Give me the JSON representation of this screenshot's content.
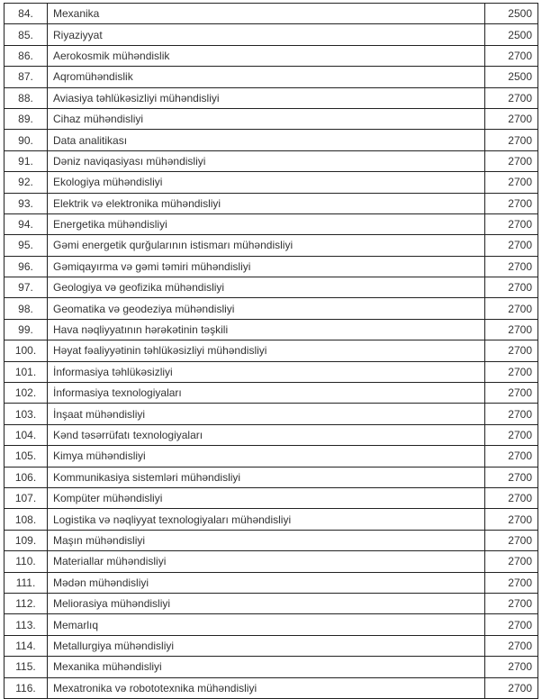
{
  "rows": [
    [
      "84.",
      "Mexanika",
      "2500"
    ],
    [
      "85.",
      "Riyaziyyat",
      "2500"
    ],
    [
      "86.",
      "Aerokosmik mühəndislik",
      "2700"
    ],
    [
      "87.",
      "Aqromühəndislik",
      "2500"
    ],
    [
      "88.",
      "Aviasiya təhlükəsizliyi mühəndisliyi",
      "2700"
    ],
    [
      "89.",
      "Cihaz mühəndisliyi",
      "2700"
    ],
    [
      "90.",
      "Data analitikası",
      "2700"
    ],
    [
      "91.",
      "Dəniz naviqasiyası mühəndisliyi",
      "2700"
    ],
    [
      "92.",
      "Ekologiya mühəndisliyi",
      "2700"
    ],
    [
      "93.",
      "Elektrik və elektronika mühəndisliyi",
      "2700"
    ],
    [
      "94.",
      "Energetika mühəndisliyi",
      "2700"
    ],
    [
      "95.",
      "Gəmi energetik qurğularının istismarı mühəndisliyi",
      "2700"
    ],
    [
      "96.",
      "Gəmiqayırma və gəmi təmiri mühəndisliyi",
      "2700"
    ],
    [
      "97.",
      "Geologiya və geofizika mühəndisliyi",
      "2700"
    ],
    [
      "98.",
      "Geomatika və geodeziya mühəndisliyi",
      "2700"
    ],
    [
      "99.",
      "Hava nəqliyyatının hərəkətinin təşkili",
      "2700"
    ],
    [
      "100.",
      "Həyat fəaliyyətinin təhlükəsizliyi mühəndisliyi",
      "2700"
    ],
    [
      "101.",
      "İnformasiya təhlükəsizliyi",
      "2700"
    ],
    [
      "102.",
      "İnformasiya texnologiyaları",
      "2700"
    ],
    [
      "103.",
      "İnşaat mühəndisliyi",
      "2700"
    ],
    [
      "104.",
      "Kənd təsərrüfatı texnologiyaları",
      "2700"
    ],
    [
      "105.",
      "Kimya mühəndisliyi",
      "2700"
    ],
    [
      "106.",
      "Kommunikasiya sistemləri mühəndisliyi",
      "2700"
    ],
    [
      "107.",
      "Kompüter mühəndisliyi",
      "2700"
    ],
    [
      "108.",
      "Logistika və nəqliyyat texnologiyaları mühəndisliyi",
      "2700"
    ],
    [
      "109.",
      "Maşın mühəndisliyi",
      "2700"
    ],
    [
      "110.",
      "Materiallar mühəndisliyi",
      "2700"
    ],
    [
      "111.",
      "Mədən mühəndisliyi",
      "2700"
    ],
    [
      "112.",
      "Meliorasiya mühəndisliyi",
      "2700"
    ],
    [
      "113.",
      "Memarlıq",
      "2700"
    ],
    [
      "114.",
      "Metallurgiya mühəndisliyi",
      "2700"
    ],
    [
      "115.",
      "Mexanika mühəndisliyi",
      "2700"
    ],
    [
      "116.",
      "Mexatronika və robototexnika mühəndisliyi",
      "2700"
    ]
  ]
}
